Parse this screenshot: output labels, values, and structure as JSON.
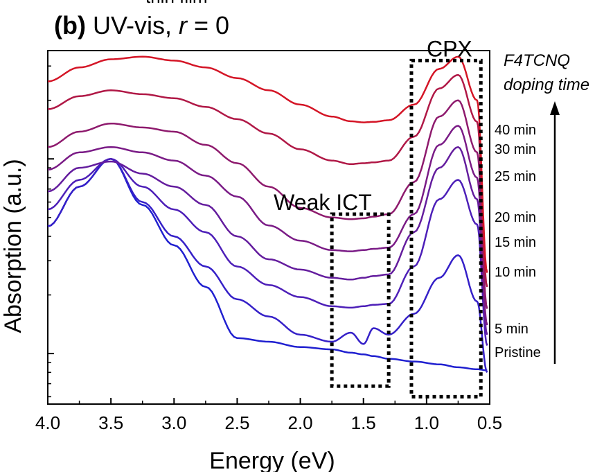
{
  "header": {
    "clipped_text": "thin film",
    "panel": "(b)",
    "title_prefix": "UV-vis,",
    "variable": "r",
    "title_suffix": "= 0"
  },
  "chart_data": {
    "type": "line",
    "title": "(b) UV-vis, r = 0",
    "xlabel": "Energy (eV)",
    "ylabel": "Absorption (a.u.)",
    "xlim": [
      4.0,
      0.5
    ],
    "x_reversed": true,
    "y_scale": "log",
    "y_ticklabels_shown": false,
    "grid": false,
    "xticks": [
      "4.0",
      "3.5",
      "3.0",
      "2.5",
      "2.0",
      "1.5",
      "1.0",
      "0.5"
    ],
    "x": [
      4.0,
      3.75,
      3.5,
      3.25,
      3.0,
      2.75,
      2.5,
      2.25,
      2.0,
      1.75,
      1.6,
      1.5,
      1.42,
      1.3,
      1.1,
      0.9,
      0.75,
      0.6,
      0.52
    ],
    "series": [
      {
        "name": "Pristine",
        "color": "#2020d0",
        "values": [
          0.45,
          0.72,
          1.0,
          0.58,
          0.36,
          0.22,
          0.12,
          0.115,
          0.108,
          0.105,
          0.101,
          0.099,
          0.097,
          0.094,
          0.091,
          0.088,
          0.085,
          0.083,
          0.082
        ]
      },
      {
        "name": "5 min",
        "color": "#3520c8",
        "values": [
          0.45,
          0.72,
          1.0,
          0.6,
          0.4,
          0.28,
          0.19,
          0.155,
          0.125,
          0.115,
          0.128,
          0.112,
          0.135,
          0.125,
          0.16,
          0.245,
          0.32,
          0.185,
          0.08
        ]
      },
      {
        "name": "10 min",
        "color": "#4d1fb8",
        "values": [
          0.55,
          0.78,
          1.0,
          0.72,
          0.55,
          0.42,
          0.28,
          0.225,
          0.195,
          0.175,
          0.172,
          0.175,
          0.178,
          0.18,
          0.28,
          0.62,
          0.78,
          0.46,
          0.11
        ]
      },
      {
        "name": "15 min",
        "color": "#641d9e",
        "values": [
          0.68,
          0.9,
          0.97,
          0.84,
          0.72,
          0.58,
          0.4,
          0.305,
          0.27,
          0.245,
          0.24,
          0.245,
          0.25,
          0.255,
          0.42,
          0.9,
          1.15,
          0.62,
          0.125
        ]
      },
      {
        "name": "20 min",
        "color": "#7a1b86",
        "values": [
          0.88,
          1.08,
          1.15,
          1.08,
          0.98,
          0.82,
          0.64,
          0.455,
          0.38,
          0.34,
          0.335,
          0.34,
          0.345,
          0.35,
          0.52,
          1.18,
          1.48,
          0.8,
          0.14
        ]
      },
      {
        "name": "25 min",
        "color": "#8e1a6d",
        "values": [
          1.15,
          1.38,
          1.52,
          1.45,
          1.38,
          1.18,
          0.95,
          0.72,
          0.56,
          0.5,
          0.49,
          0.495,
          0.505,
          0.52,
          0.76,
          1.65,
          2.0,
          1.08,
          0.17
        ]
      },
      {
        "name": "30 min",
        "color": "#b01846",
        "values": [
          1.8,
          2.1,
          2.25,
          2.15,
          2.05,
          1.85,
          1.6,
          1.35,
          1.12,
          0.98,
          0.94,
          0.95,
          0.96,
          0.98,
          1.3,
          2.3,
          2.7,
          1.55,
          0.22
        ]
      },
      {
        "name": "40 min",
        "color": "#d41526",
        "values": [
          2.5,
          2.95,
          3.25,
          3.35,
          3.2,
          2.95,
          2.6,
          2.25,
          1.9,
          1.65,
          1.56,
          1.54,
          1.55,
          1.58,
          1.9,
          2.9,
          3.35,
          2.0,
          0.26
        ]
      }
    ],
    "annotations": {
      "weak_ict": {
        "label": "Weak ICT",
        "x_range": [
          1.75,
          1.3
        ]
      },
      "cpx": {
        "label": "CPX",
        "x_range": [
          1.12,
          0.57
        ]
      }
    },
    "arrow_label": [
      "F4TCNQ",
      "doping time"
    ]
  }
}
